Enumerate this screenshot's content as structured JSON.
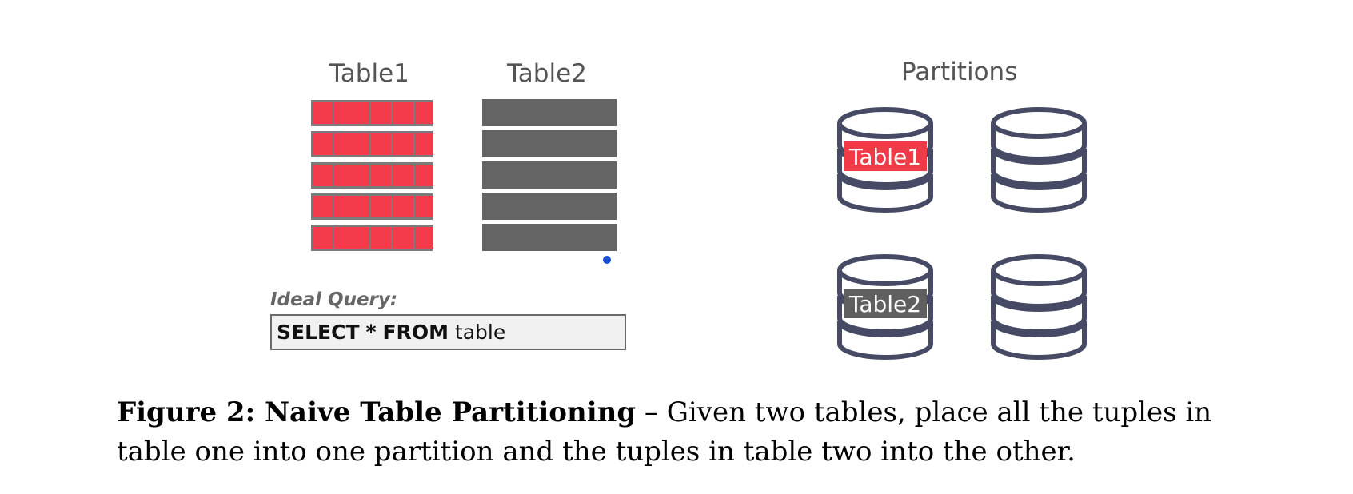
{
  "left_panel": {
    "table1_title": "Table1",
    "table2_title": "Table2",
    "table1_rows": 5,
    "table1_cols": 5,
    "table2_rows": 5,
    "query_label": "Ideal Query:",
    "query_keyword_1": "SELECT",
    "query_star": "*",
    "query_keyword_2": "FROM",
    "query_table": "table"
  },
  "right_panel": {
    "title": "Partitions",
    "partition_labels": [
      "Table1",
      "",
      "Table2",
      ""
    ]
  },
  "caption": {
    "figure_title": "Figure 2: Naive Table Partitioning",
    "dash": "–",
    "body": "Given two tables, place all the tuples in table one into one partition and the tuples in table two into the other."
  },
  "colors": {
    "table1_fill": "#f43b4b",
    "table2_fill": "#646464",
    "cylinder_stroke": "#464a64",
    "label_table1_bg": "#ef3a48",
    "label_table2_bg": "#5f5f5f",
    "marker_dot": "#1a50d6"
  }
}
